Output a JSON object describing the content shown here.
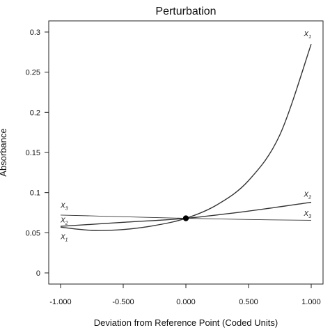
{
  "chart_data": {
    "type": "line",
    "title": "Perturbation",
    "xlabel": "Deviation from Reference Point (Coded Units)",
    "ylabel": "Absorbance",
    "xlim": [
      -1.0,
      1.0
    ],
    "ylim": [
      0,
      0.3
    ],
    "x_ticks": [
      "-1.000",
      "-0.500",
      "0.000",
      "0.500",
      "1.000"
    ],
    "x_tick_values": [
      -1.0,
      -0.5,
      0.0,
      0.5,
      1.0
    ],
    "y_ticks": [
      "0",
      "0.05",
      "0.1",
      "0.15",
      "0.2",
      "0.25",
      "0.3"
    ],
    "y_tick_values": [
      0,
      0.05,
      0.1,
      0.15,
      0.2,
      0.25,
      0.3
    ],
    "grid": false,
    "reference_point": {
      "x": 0.0,
      "y": 0.068
    },
    "series": [
      {
        "name": "X1",
        "x": [
          -1.0,
          -0.75,
          -0.5,
          -0.25,
          0.0,
          0.25,
          0.5,
          0.75,
          1.0
        ],
        "y": [
          0.057,
          0.053,
          0.054,
          0.059,
          0.068,
          0.085,
          0.115,
          0.172,
          0.285
        ]
      },
      {
        "name": "X2",
        "x": [
          -1.0,
          -0.5,
          0.0,
          0.5,
          1.0
        ],
        "y": [
          0.058,
          0.063,
          0.068,
          0.077,
          0.088
        ]
      },
      {
        "name": "X3",
        "x": [
          -1.0,
          -0.5,
          0.0,
          0.5,
          1.0
        ],
        "y": [
          0.072,
          0.07,
          0.068,
          0.0665,
          0.0655
        ]
      }
    ],
    "series_labels": [
      {
        "series": "X1",
        "base": "X",
        "sub": "1",
        "anchor": "end",
        "x": 1.0,
        "y": 0.295
      },
      {
        "series": "X2",
        "base": "X",
        "sub": "2",
        "anchor": "end",
        "x": 1.0,
        "y": 0.095
      },
      {
        "series": "X3",
        "base": "X",
        "sub": "3",
        "anchor": "end",
        "x": 1.0,
        "y": 0.071
      },
      {
        "series": "X3",
        "base": "X",
        "sub": "3",
        "anchor": "start",
        "x": -1.0,
        "y": 0.081
      },
      {
        "series": "X2",
        "base": "X",
        "sub": "2",
        "anchor": "start",
        "x": -1.0,
        "y": 0.063
      },
      {
        "series": "X1",
        "base": "X",
        "sub": "1",
        "anchor": "start",
        "x": -1.0,
        "y": 0.042
      }
    ]
  }
}
